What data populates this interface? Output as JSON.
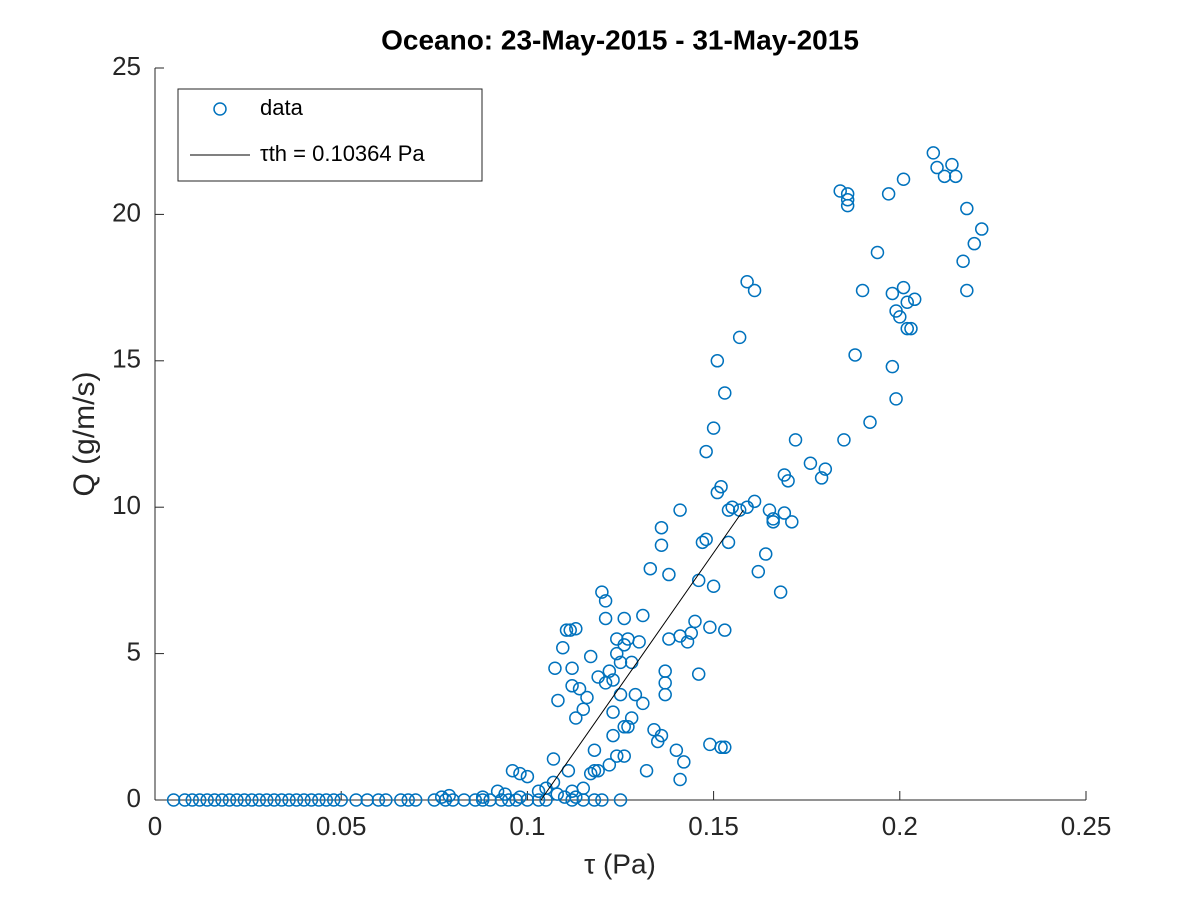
{
  "chart_data": {
    "type": "scatter",
    "title": "Oceano: 23-May-2015 - 31-May-2015",
    "xlabel": "τ (Pa)",
    "ylabel": "Q (g/m/s)",
    "xlim": [
      0,
      0.25
    ],
    "xticks": [
      0,
      0.05,
      0.1,
      0.15,
      0.2,
      0.25
    ],
    "ylim": [
      0,
      25
    ],
    "yticks": [
      0,
      5,
      10,
      15,
      20,
      25
    ],
    "legend": "upper left",
    "grid": false,
    "series": [
      {
        "name": "data",
        "color": "#0072bd",
        "style": "marker",
        "x": [
          0.005,
          0.008,
          0.01,
          0.012,
          0.014,
          0.016,
          0.018,
          0.02,
          0.022,
          0.024,
          0.026,
          0.028,
          0.03,
          0.032,
          0.034,
          0.036,
          0.038,
          0.04,
          0.042,
          0.044,
          0.046,
          0.048,
          0.05,
          0.054,
          0.057,
          0.06,
          0.062,
          0.066,
          0.068,
          0.07,
          0.075,
          0.078,
          0.08,
          0.083,
          0.086,
          0.088,
          0.09,
          0.093,
          0.095,
          0.097,
          0.1,
          0.103,
          0.105,
          0.112,
          0.115,
          0.118,
          0.12,
          0.125,
          0.077,
          0.079,
          0.088,
          0.092,
          0.094,
          0.096,
          0.098,
          0.1,
          0.103,
          0.105,
          0.107,
          0.108,
          0.11,
          0.112,
          0.113,
          0.098,
          0.107,
          0.111,
          0.115,
          0.117,
          0.119,
          0.122,
          0.124,
          0.126,
          0.126,
          0.1074,
          0.1082,
          0.1095,
          0.1105,
          0.1115,
          0.113,
          0.112,
          0.112,
          0.113,
          0.114,
          0.115,
          0.116,
          0.117,
          0.118,
          0.118,
          0.119,
          0.12,
          0.121,
          0.121,
          0.121,
          0.122,
          0.123,
          0.123,
          0.123,
          0.124,
          0.124,
          0.125,
          0.125,
          0.126,
          0.126,
          0.127,
          0.127,
          0.128,
          0.128,
          0.129,
          0.13,
          0.131,
          0.131,
          0.132,
          0.133,
          0.134,
          0.135,
          0.136,
          0.136,
          0.136,
          0.137,
          0.137,
          0.137,
          0.138,
          0.138,
          0.14,
          0.141,
          0.141,
          0.141,
          0.142,
          0.143,
          0.144,
          0.145,
          0.146,
          0.146,
          0.147,
          0.148,
          0.148,
          0.149,
          0.149,
          0.15,
          0.15,
          0.151,
          0.151,
          0.152,
          0.152,
          0.153,
          0.153,
          0.153,
          0.154,
          0.154,
          0.155,
          0.157,
          0.157,
          0.159,
          0.159,
          0.161,
          0.161,
          0.162,
          0.164,
          0.165,
          0.166,
          0.166,
          0.168,
          0.169,
          0.169,
          0.17,
          0.171,
          0.172,
          0.176,
          0.179,
          0.18,
          0.184,
          0.185,
          0.186,
          0.186,
          0.186,
          0.188,
          0.19,
          0.192,
          0.194,
          0.197,
          0.198,
          0.198,
          0.199,
          0.199,
          0.2,
          0.201,
          0.201,
          0.202,
          0.202,
          0.203,
          0.204,
          0.209,
          0.21,
          0.212,
          0.214,
          0.215,
          0.217,
          0.218,
          0.218,
          0.22,
          0.222
        ],
        "y": [
          0,
          0,
          0,
          0,
          0,
          0,
          0,
          0,
          0,
          0,
          0,
          0,
          0,
          0,
          0,
          0,
          0,
          0,
          0,
          0,
          0,
          0,
          0,
          0,
          0,
          0,
          0,
          0,
          0,
          0,
          0,
          0,
          0,
          0,
          0,
          0,
          0,
          0,
          0,
          0,
          0,
          0,
          0,
          0,
          0,
          0,
          0,
          0,
          0.1,
          0.15,
          0.1,
          0.3,
          0.2,
          1.0,
          0.9,
          0.8,
          0.3,
          0.4,
          0.6,
          0.2,
          0.1,
          0.3,
          0.1,
          0.1,
          1.4,
          1.0,
          0.4,
          0.9,
          1.0,
          1.2,
          1.5,
          1.5,
          2.5,
          4.5,
          3.4,
          5.2,
          5.8,
          5.8,
          5.85,
          3.9,
          4.5,
          2.8,
          3.8,
          3.1,
          3.5,
          4.9,
          1.7,
          1.0,
          4.2,
          7.1,
          6.8,
          6.2,
          4.0,
          4.4,
          4.1,
          3.0,
          2.2,
          5.0,
          5.5,
          4.7,
          3.6,
          5.3,
          6.2,
          5.5,
          2.5,
          4.7,
          2.8,
          3.6,
          5.4,
          6.3,
          3.3,
          1.0,
          7.9,
          2.4,
          2.0,
          9.3,
          8.7,
          2.2,
          4.4,
          3.6,
          4.0,
          7.7,
          5.5,
          1.7,
          0.7,
          5.6,
          9.9,
          1.3,
          5.4,
          5.7,
          6.1,
          4.3,
          7.5,
          8.8,
          11.9,
          8.9,
          5.9,
          1.9,
          7.3,
          12.7,
          15.0,
          10.5,
          10.7,
          1.8,
          1.8,
          5.8,
          13.9,
          8.8,
          9.9,
          10.0,
          15.8,
          9.9,
          10.0,
          17.7,
          17.4,
          10.2,
          7.8,
          8.4,
          9.9,
          9.5,
          9.6,
          7.1,
          9.8,
          11.1,
          10.9,
          9.5,
          12.3,
          11.5,
          11.0,
          11.3,
          20.8,
          12.3,
          20.7,
          20.3,
          20.5,
          15.2,
          17.4,
          12.9,
          18.7,
          20.7,
          14.8,
          17.3,
          13.7,
          16.7,
          16.5,
          21.2,
          17.5,
          16.1,
          17.0,
          16.1,
          17.1,
          22.1,
          21.6,
          21.3,
          21.7,
          21.3,
          18.4,
          20.2,
          17.4,
          19.0,
          19.5
        ]
      },
      {
        "name": "τth = 0.10364 Pa",
        "color": "#000000",
        "style": "line",
        "x": [
          0.10364,
          0.158
        ],
        "y": [
          0,
          9.9
        ]
      }
    ]
  }
}
